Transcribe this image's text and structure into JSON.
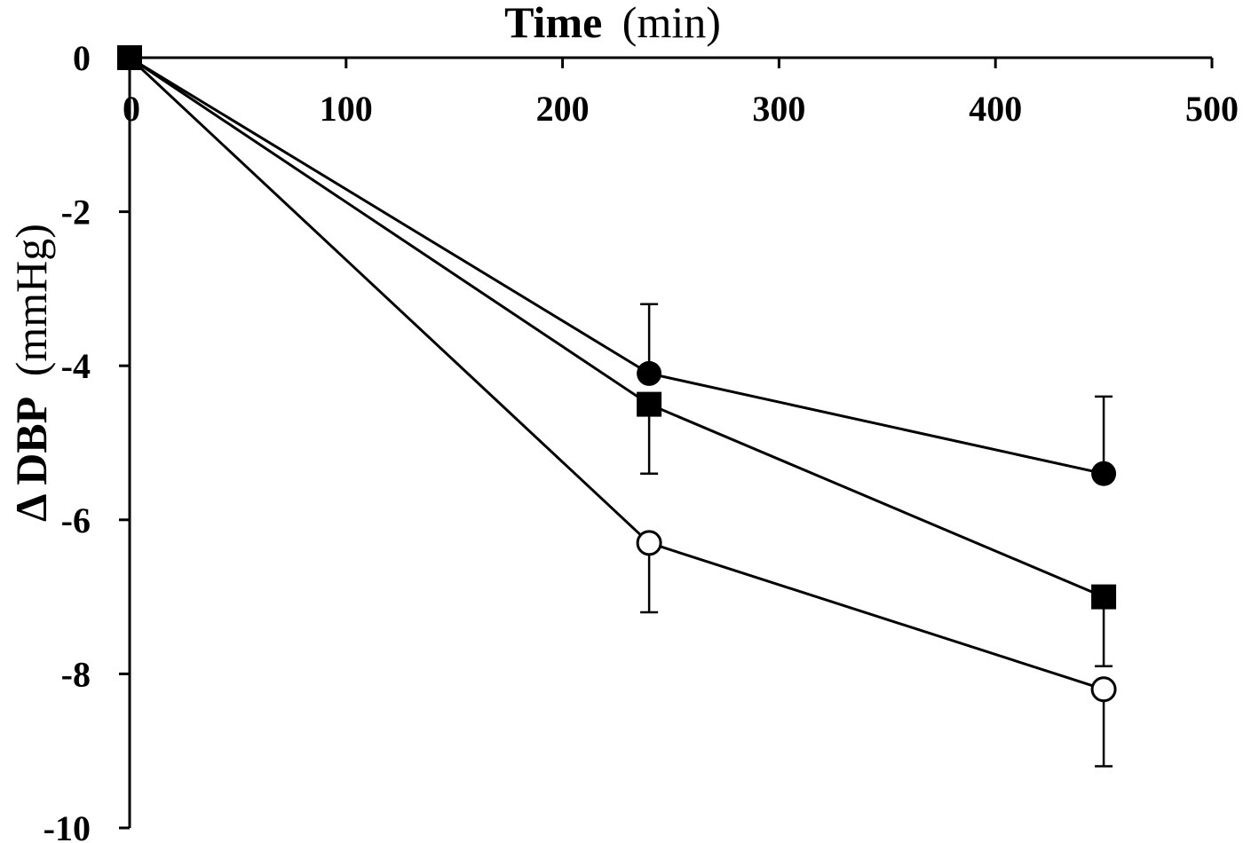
{
  "chart_data": {
    "type": "line",
    "xlabel_bold": "Time",
    "xlabel_unit": "(min)",
    "ylabel_bold": "Δ DBP",
    "ylabel_unit": "(mmHg)",
    "xlim": [
      0,
      500
    ],
    "ylim": [
      -10,
      0
    ],
    "x_ticks": [
      0,
      100,
      200,
      300,
      400,
      500
    ],
    "y_ticks": [
      0,
      -2,
      -4,
      -6,
      -8,
      -10
    ],
    "x_tick_labels": [
      "0",
      "100",
      "200",
      "300",
      "400",
      "500"
    ],
    "y_tick_labels": [
      "0",
      "-2",
      "-4",
      "-6",
      "-8",
      "-10"
    ],
    "x_axis_position": "top",
    "grid": false,
    "legend": "none",
    "series": [
      {
        "marker": "filled-circle",
        "x": [
          0,
          240,
          450
        ],
        "y": [
          0,
          -4.1,
          -5.4
        ],
        "error": [
          0,
          0.9,
          1.0
        ]
      },
      {
        "marker": "filled-square",
        "x": [
          0,
          240,
          450
        ],
        "y": [
          0,
          -4.5,
          -7.0
        ],
        "error": [
          0,
          0.9,
          0.9
        ]
      },
      {
        "marker": "open-circle",
        "x": [
          0,
          240,
          450
        ],
        "y": [
          0,
          -6.3,
          -8.2
        ],
        "error": [
          0,
          0.9,
          1.0
        ]
      }
    ]
  }
}
